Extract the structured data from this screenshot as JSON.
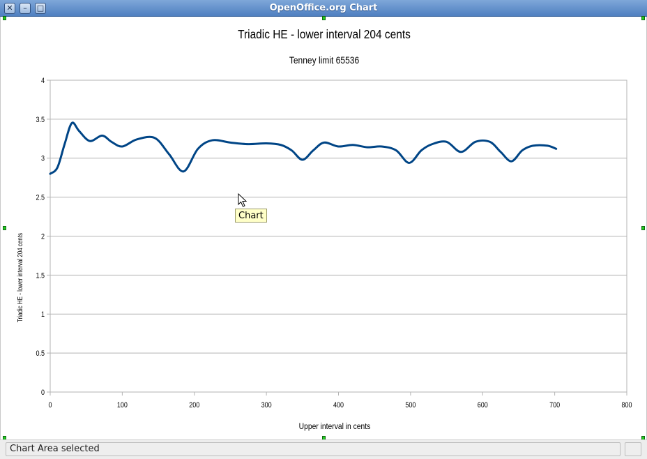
{
  "window": {
    "title": "OpenOffice.org Chart",
    "buttons": {
      "close": "close-icon",
      "minimize": "minimize-icon",
      "maximize": "maximize-icon"
    }
  },
  "tooltip": {
    "text": "Chart"
  },
  "status": {
    "text": "Chart Area selected"
  },
  "colors": {
    "series": "#004586",
    "grid": "#b3b3b3",
    "titlebar": "#5b87c5"
  },
  "chart_data": {
    "type": "line",
    "title": "Triadic HE - lower interval 204 cents",
    "subtitle": "Tenney limit 65536",
    "xlabel": "Upper interval in cents",
    "ylabel": "Triadic HE - lower interval 204 cents",
    "xlim": [
      0,
      800
    ],
    "ylim": [
      0,
      4
    ],
    "x_ticks": [
      "0",
      "100",
      "200",
      "300",
      "400",
      "500",
      "600",
      "700",
      "800"
    ],
    "y_ticks": [
      "0",
      "0.5",
      "1",
      "1.5",
      "2",
      "2.5",
      "3",
      "3.5",
      "4"
    ],
    "grid": true,
    "smooth": true,
    "series": [
      {
        "name": "",
        "x": [
          0,
          10,
          20,
          30,
          40,
          55,
          72,
          85,
          100,
          120,
          145,
          165,
          185,
          205,
          225,
          250,
          275,
          300,
          320,
          335,
          350,
          365,
          380,
          400,
          420,
          440,
          460,
          480,
          498,
          515,
          530,
          550,
          570,
          590,
          610,
          625,
          640,
          655,
          670,
          690,
          702
        ],
        "y": [
          2.8,
          2.88,
          3.18,
          3.45,
          3.35,
          3.22,
          3.29,
          3.21,
          3.15,
          3.24,
          3.26,
          3.05,
          2.83,
          3.12,
          3.23,
          3.2,
          3.18,
          3.19,
          3.17,
          3.1,
          2.98,
          3.1,
          3.2,
          3.15,
          3.17,
          3.14,
          3.15,
          3.1,
          2.94,
          3.1,
          3.18,
          3.21,
          3.08,
          3.21,
          3.21,
          3.08,
          2.96,
          3.1,
          3.16,
          3.16,
          3.12
        ]
      }
    ]
  }
}
